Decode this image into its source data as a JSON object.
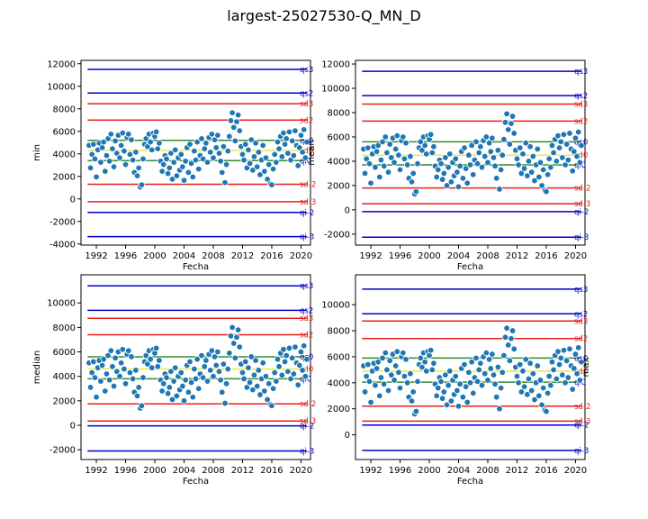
{
  "title": "largest-25027530-Q_MN_D",
  "colors": {
    "qi": "#0000cc",
    "sd": "#e8201a",
    "band": "#2e8b2e",
    "mean": "#e8e84a",
    "point": "#1f77b4"
  },
  "chart_data": [
    {
      "type": "scatter",
      "ylabel": "min",
      "y2label": "mean",
      "xlabel": "Fecha",
      "xlim": [
        1989.9,
        2021.3
      ],
      "ylim": [
        -4100,
        12300
      ],
      "xticks": [
        1992,
        1996,
        2000,
        2004,
        2008,
        2012,
        2016,
        2020
      ],
      "yticks": [
        -4000,
        -2000,
        0,
        2000,
        4000,
        6000,
        8000,
        10000,
        12000
      ],
      "level_lines": [
        {
          "label": "qs3",
          "y": 11500,
          "kind": "qi"
        },
        {
          "label": "qs2",
          "y": 9400,
          "kind": "qi"
        },
        {
          "label": "sd3",
          "y": 8450,
          "kind": "sd"
        },
        {
          "label": "sd2",
          "y": 7000,
          "kind": "sd"
        },
        {
          "label": "qs0",
          "y": 5200,
          "kind": "band"
        },
        {
          "label": "sd0",
          "y": 4300,
          "kind": "mean"
        },
        {
          "label": "qi0",
          "y": 3400,
          "kind": "band"
        },
        {
          "label": "sd-2",
          "y": 1300,
          "kind": "sd"
        },
        {
          "label": "sd-3",
          "y": -250,
          "kind": "sd"
        },
        {
          "label": "qi-2",
          "y": -1200,
          "kind": "qi"
        },
        {
          "label": "qi-3",
          "y": -3350,
          "kind": "qi"
        }
      ]
    },
    {
      "type": "scatter",
      "ylabel": "",
      "y2label": "",
      "xlabel": "Fecha",
      "xlim": [
        1989.9,
        2021.3
      ],
      "ylim": [
        -2900,
        12300
      ],
      "xticks": [
        1992,
        1996,
        2000,
        2004,
        2008,
        2012,
        2016,
        2020
      ],
      "yticks": [
        -2000,
        0,
        2000,
        4000,
        6000,
        8000,
        10000,
        12000
      ],
      "level_lines": [
        {
          "label": "qs3",
          "y": 11400,
          "kind": "qi"
        },
        {
          "label": "qs2",
          "y": 9400,
          "kind": "qi"
        },
        {
          "label": "sd3",
          "y": 8700,
          "kind": "sd"
        },
        {
          "label": "sd2",
          "y": 7300,
          "kind": "sd"
        },
        {
          "label": "qs0",
          "y": 5600,
          "kind": "band"
        },
        {
          "label": "sd0",
          "y": 4500,
          "kind": "mean"
        },
        {
          "label": "qi0",
          "y": 3700,
          "kind": "band"
        },
        {
          "label": "sd-2",
          "y": 1800,
          "kind": "sd"
        },
        {
          "label": "sd-3",
          "y": 500,
          "kind": "sd"
        },
        {
          "label": "qi-2",
          "y": -150,
          "kind": "qi"
        },
        {
          "label": "qi-3",
          "y": -2250,
          "kind": "qi"
        }
      ]
    },
    {
      "type": "scatter",
      "ylabel": "median",
      "y2label": "",
      "xlabel": "Fecha",
      "xlim": [
        1989.9,
        2021.3
      ],
      "ylim": [
        -2800,
        12300
      ],
      "xticks": [
        1992,
        1996,
        2000,
        2004,
        2008,
        2012,
        2016,
        2020
      ],
      "yticks": [
        -2000,
        0,
        2000,
        4000,
        6000,
        8000,
        10000
      ],
      "level_lines": [
        {
          "label": "qs3",
          "y": 11400,
          "kind": "qi"
        },
        {
          "label": "qs2",
          "y": 9400,
          "kind": "qi"
        },
        {
          "label": "sd3",
          "y": 8750,
          "kind": "sd"
        },
        {
          "label": "sd2",
          "y": 7400,
          "kind": "sd"
        },
        {
          "label": "qs0",
          "y": 5600,
          "kind": "band"
        },
        {
          "label": "sd0",
          "y": 4600,
          "kind": "mean"
        },
        {
          "label": "qi0",
          "y": 3800,
          "kind": "band"
        },
        {
          "label": "sd-2",
          "y": 1750,
          "kind": "sd"
        },
        {
          "label": "sd-3",
          "y": 350,
          "kind": "sd"
        },
        {
          "label": "qi-2",
          "y": -50,
          "kind": "qi"
        },
        {
          "label": "qi-3",
          "y": -2100,
          "kind": "qi"
        }
      ]
    },
    {
      "type": "scatter",
      "ylabel": "",
      "y2label": "max",
      "xlabel": "Fecha",
      "xlim": [
        1989.9,
        2021.3
      ],
      "ylim": [
        -1900,
        12300
      ],
      "xticks": [
        1992,
        1996,
        2000,
        2004,
        2008,
        2012,
        2016,
        2020
      ],
      "yticks": [
        0,
        2000,
        4000,
        6000,
        8000,
        10000
      ],
      "level_lines": [
        {
          "label": "qs3",
          "y": 11200,
          "kind": "qi"
        },
        {
          "label": "qs2",
          "y": 9300,
          "kind": "qi"
        },
        {
          "label": "sd3",
          "y": 8750,
          "kind": "sd"
        },
        {
          "label": "sd2",
          "y": 7400,
          "kind": "sd"
        },
        {
          "label": "qs0",
          "y": 5900,
          "kind": "band"
        },
        {
          "label": "sd0",
          "y": 4900,
          "kind": "mean"
        },
        {
          "label": "qi0",
          "y": 4050,
          "kind": "band"
        },
        {
          "label": "sd-2",
          "y": 2200,
          "kind": "sd"
        },
        {
          "label": "sd-3",
          "y": 1050,
          "kind": "sd"
        },
        {
          "label": "qi-2",
          "y": 750,
          "kind": "qi"
        },
        {
          "label": "qi-3",
          "y": -1200,
          "kind": "qi"
        }
      ]
    }
  ],
  "series_shape": [
    [
      1991.0,
      5000
    ],
    [
      1991.2,
      3000
    ],
    [
      1991.4,
      4200
    ],
    [
      1991.6,
      5100
    ],
    [
      1991.8,
      3800
    ],
    [
      1992.0,
      2200
    ],
    [
      1992.2,
      4600
    ],
    [
      1992.4,
      5200
    ],
    [
      1992.6,
      3500
    ],
    [
      1992.8,
      4800
    ],
    [
      1993.0,
      5300
    ],
    [
      1993.2,
      2700
    ],
    [
      1993.4,
      4100
    ],
    [
      1993.6,
      5600
    ],
    [
      1993.8,
      3600
    ],
    [
      1994.0,
      6000
    ],
    [
      1994.2,
      4700
    ],
    [
      1994.4,
      3100
    ],
    [
      1994.6,
      5400
    ],
    [
      1994.8,
      4300
    ],
    [
      1995.0,
      5900
    ],
    [
      1995.2,
      3900
    ],
    [
      1995.4,
      5000
    ],
    [
      1995.6,
      6100
    ],
    [
      1995.8,
      4500
    ],
    [
      1996.0,
      3300
    ],
    [
      1996.2,
      5700
    ],
    [
      1996.4,
      6000
    ],
    [
      1996.6,
      4200
    ],
    [
      1996.8,
      5500
    ],
    [
      1997.0,
      3700
    ],
    [
      1997.2,
      2600
    ],
    [
      1997.4,
      4400
    ],
    [
      1997.6,
      2300
    ],
    [
      1997.8,
      3000
    ],
    [
      1998.0,
      1300
    ],
    [
      1998.2,
      1500
    ],
    [
      1998.4,
      3800
    ],
    [
      1998.6,
      5100
    ],
    [
      1998.8,
      5600
    ],
    [
      1999.0,
      4900
    ],
    [
      1999.2,
      6000
    ],
    [
      1999.4,
      5300
    ],
    [
      1999.6,
      4600
    ],
    [
      1999.8,
      6100
    ],
    [
      2000.0,
      5800
    ],
    [
      2000.2,
      6200
    ],
    [
      2000.4,
      4700
    ],
    [
      2000.6,
      5200
    ],
    [
      2000.8,
      3600
    ],
    [
      2001.0,
      2700
    ],
    [
      2001.2,
      3300
    ],
    [
      2001.4,
      4100
    ],
    [
      2001.6,
      3800
    ],
    [
      2001.8,
      2500
    ],
    [
      2002.0,
      3000
    ],
    [
      2002.2,
      4300
    ],
    [
      2002.4,
      2000
    ],
    [
      2002.6,
      3500
    ],
    [
      2002.8,
      4600
    ],
    [
      2003.0,
      2300
    ],
    [
      2003.2,
      3900
    ],
    [
      2003.4,
      2800
    ],
    [
      2003.6,
      4200
    ],
    [
      2003.8,
      3100
    ],
    [
      2004.0,
      1900
    ],
    [
      2004.2,
      3600
    ],
    [
      2004.4,
      4800
    ],
    [
      2004.6,
      2600
    ],
    [
      2004.8,
      5100
    ],
    [
      2005.0,
      3400
    ],
    [
      2005.2,
      2200
    ],
    [
      2005.4,
      4500
    ],
    [
      2005.6,
      3700
    ],
    [
      2005.8,
      5300
    ],
    [
      2006.0,
      2900
    ],
    [
      2006.2,
      4100
    ],
    [
      2006.4,
      5600
    ],
    [
      2006.6,
      3800
    ],
    [
      2006.8,
      4700
    ],
    [
      2007.0,
      5200
    ],
    [
      2007.2,
      3500
    ],
    [
      2007.4,
      5700
    ],
    [
      2007.6,
      4400
    ],
    [
      2007.8,
      6000
    ],
    [
      2008.0,
      3900
    ],
    [
      2008.2,
      5500
    ],
    [
      2008.4,
      4800
    ],
    [
      2008.6,
      5900
    ],
    [
      2008.8,
      4300
    ],
    [
      2009.0,
      3600
    ],
    [
      2009.2,
      2600
    ],
    [
      2009.4,
      4900
    ],
    [
      2009.6,
      1700
    ],
    [
      2009.8,
      3300
    ],
    [
      2010.0,
      4500
    ],
    [
      2010.2,
      5800
    ],
    [
      2010.4,
      7200
    ],
    [
      2010.6,
      7900
    ],
    [
      2010.8,
      6600
    ],
    [
      2011.0,
      5400
    ],
    [
      2011.2,
      7100
    ],
    [
      2011.4,
      7700
    ],
    [
      2011.6,
      6300
    ],
    [
      2011.8,
      4900
    ],
    [
      2012.0,
      4200
    ],
    [
      2012.2,
      3700
    ],
    [
      2012.4,
      5100
    ],
    [
      2012.6,
      3000
    ],
    [
      2012.8,
      4600
    ],
    [
      2013.0,
      3400
    ],
    [
      2013.2,
      5500
    ],
    [
      2013.4,
      2800
    ],
    [
      2013.6,
      4000
    ],
    [
      2013.8,
      5200
    ],
    [
      2014.0,
      3100
    ],
    [
      2014.2,
      4400
    ],
    [
      2014.4,
      2400
    ],
    [
      2014.6,
      3700
    ],
    [
      2014.8,
      5000
    ],
    [
      2015.0,
      2700
    ],
    [
      2015.2,
      3900
    ],
    [
      2015.4,
      2000
    ],
    [
      2015.6,
      3300
    ],
    [
      2015.8,
      1600
    ],
    [
      2016.0,
      1500
    ],
    [
      2016.2,
      2900
    ],
    [
      2016.4,
      4200
    ],
    [
      2016.6,
      3500
    ],
    [
      2016.8,
      5300
    ],
    [
      2017.0,
      4700
    ],
    [
      2017.2,
      5800
    ],
    [
      2017.4,
      4000
    ],
    [
      2017.6,
      6100
    ],
    [
      2017.8,
      5100
    ],
    [
      2018.0,
      5600
    ],
    [
      2018.2,
      4300
    ],
    [
      2018.4,
      6200
    ],
    [
      2018.6,
      3700
    ],
    [
      2018.8,
      5400
    ],
    [
      2019.0,
      4100
    ],
    [
      2019.2,
      6300
    ],
    [
      2019.4,
      5000
    ],
    [
      2019.6,
      3200
    ],
    [
      2019.8,
      4800
    ],
    [
      2020.0,
      5900
    ],
    [
      2020.2,
      4400
    ],
    [
      2020.4,
      6400
    ],
    [
      2020.6,
      3900
    ],
    [
      2020.8,
      5300
    ]
  ]
}
